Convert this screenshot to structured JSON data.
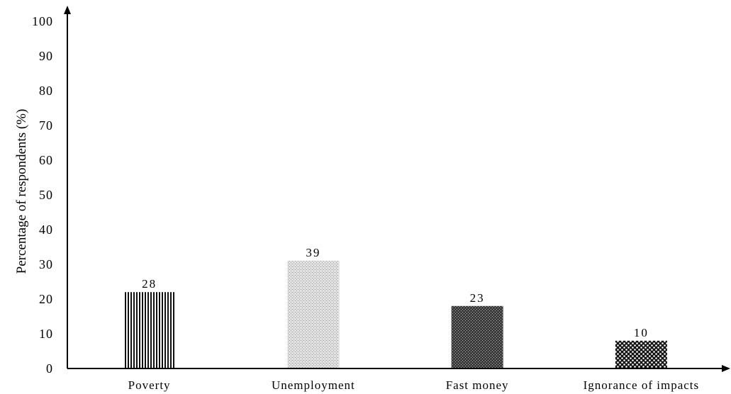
{
  "chart_data": {
    "type": "bar",
    "categories": [
      "Poverty",
      "Unemployment",
      "Fast money",
      "Ignorance of impacts"
    ],
    "values": [
      22,
      31,
      18,
      8
    ],
    "data_labels": [
      "28",
      "39",
      "23",
      "10"
    ],
    "title": "",
    "xlabel": "",
    "ylabel": "Percentage of respondents (%)",
    "ylim": [
      0,
      100
    ],
    "yticks": [
      "0",
      "10",
      "20",
      "30",
      "40",
      "50",
      "60",
      "70",
      "80",
      "90",
      "100"
    ],
    "patterns": [
      "vertical-stripes",
      "light-dots",
      "dark-checker",
      "dark-dots"
    ],
    "grid": false,
    "legend": "none"
  }
}
